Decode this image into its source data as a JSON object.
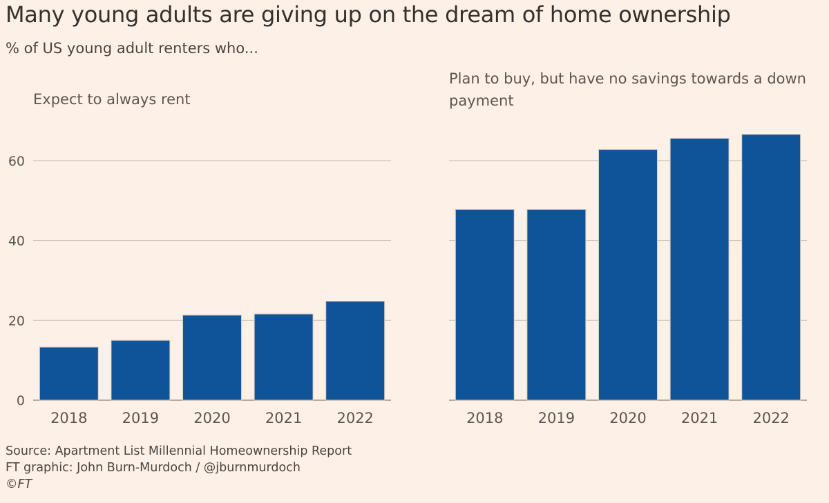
{
  "title": "Many young adults are giving up on the dream of home ownership",
  "subtitle": "% of US young adult renters who...",
  "footer": {
    "source": "Source: Apartment List Millennial Homeownership Report",
    "graphic": "FT graphic: John Burn-Murdoch / @jburnmurdoch",
    "copyright": "©FT"
  },
  "colors": {
    "bar": "#0f5499",
    "grid": "#ccc1b7",
    "background": "#fdf0e6"
  },
  "chart_data": [
    {
      "type": "bar",
      "title": "Expect to always rent",
      "categories": [
        "2018",
        "2019",
        "2020",
        "2021",
        "2022"
      ],
      "values": [
        13.3,
        15,
        21.3,
        21.6,
        24.8
      ],
      "ylim": [
        0,
        70
      ],
      "yticks": [
        0,
        20,
        40,
        60
      ],
      "xlabel": "",
      "ylabel": ""
    },
    {
      "type": "bar",
      "title": "Plan to buy, but have no savings towards a down payment",
      "categories": [
        "2018",
        "2019",
        "2020",
        "2021",
        "2022"
      ],
      "values": [
        47.8,
        47.8,
        62.8,
        65.6,
        66.6
      ],
      "ylim": [
        0,
        70
      ],
      "yticks": [
        0,
        20,
        40,
        60
      ],
      "xlabel": "",
      "ylabel": ""
    }
  ]
}
